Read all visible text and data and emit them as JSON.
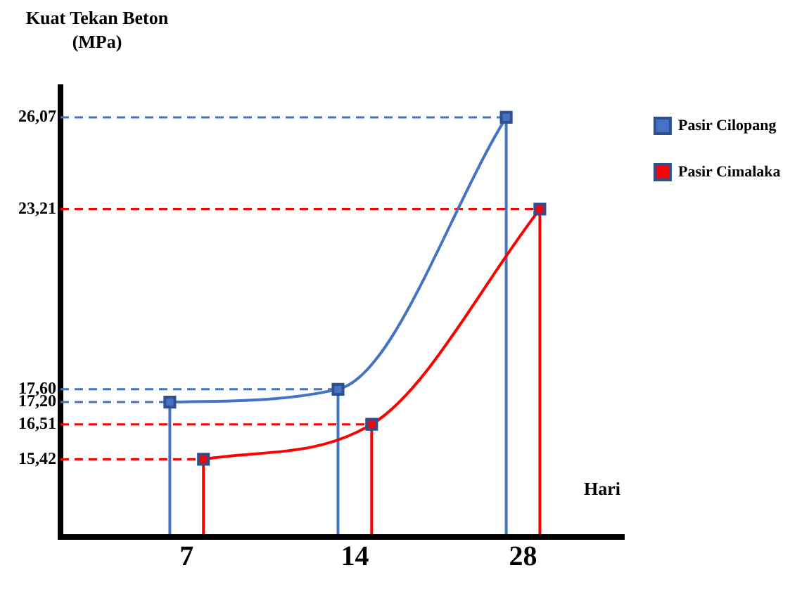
{
  "chart_data": {
    "type": "line",
    "ylabel": "Kuat Tekan Beton\n(MPa)",
    "xlabel": "Hari",
    "categories": [
      "7",
      "14",
      "28"
    ],
    "series": [
      {
        "name": "Pasir Cilopang",
        "color": "#4472c4",
        "values": [
          17.2,
          17.6,
          26.07
        ]
      },
      {
        "name": "Pasir Cimalaka",
        "color": "#ff0000",
        "values": [
          15.42,
          16.51,
          23.21
        ]
      }
    ],
    "ylim": [
      13,
      27
    ],
    "yticks": [
      {
        "value": 15.42,
        "label": "15,42"
      },
      {
        "value": 16.51,
        "label": "16,51"
      },
      {
        "value": 17.2,
        "label": "17,20"
      },
      {
        "value": 17.6,
        "label": "17,60"
      },
      {
        "value": 23.21,
        "label": "23,21"
      },
      {
        "value": 26.07,
        "label": "26,07"
      }
    ],
    "ref_lines": [
      {
        "axis": "y",
        "value": 17.2,
        "color": "#4472c4",
        "line_style": "dashed"
      },
      {
        "axis": "y",
        "value": 17.6,
        "color": "#4472c4",
        "line_style": "dashed"
      },
      {
        "axis": "y",
        "value": 26.07,
        "color": "#4472c4",
        "line_style": "dashed"
      },
      {
        "axis": "y",
        "value": 15.42,
        "color": "#ff0000",
        "line_style": "dashed"
      },
      {
        "axis": "y",
        "value": 16.51,
        "color": "#ff0000",
        "line_style": "dashed"
      },
      {
        "axis": "y",
        "value": 23.21,
        "color": "#ff0000",
        "line_style": "dashed"
      },
      {
        "axis": "x",
        "value": "7",
        "color": "#4472c4"
      },
      {
        "axis": "x",
        "value": "14",
        "color": "#4472c4"
      },
      {
        "axis": "x",
        "value": "28",
        "color": "#4472c4"
      },
      {
        "axis": "x",
        "value": "7",
        "color": "#ff0000"
      },
      {
        "axis": "x",
        "value": "14",
        "color": "#ff0000"
      },
      {
        "axis": "x",
        "value": "28",
        "color": "#ff0000"
      }
    ],
    "marker": "square",
    "line_style": "solid",
    "grid": false,
    "legend": "top right"
  }
}
